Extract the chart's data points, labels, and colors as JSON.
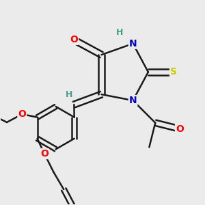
{
  "bg_color": "#ebebeb",
  "bond_color": "#1a1a1a",
  "atom_colors": {
    "O": "#ff0000",
    "N": "#0000cc",
    "S": "#cccc00",
    "H_label": "#4a9a8a",
    "C": "#1a1a1a"
  },
  "font_size": 10,
  "figsize": [
    3.0,
    3.0
  ],
  "dpi": 100
}
